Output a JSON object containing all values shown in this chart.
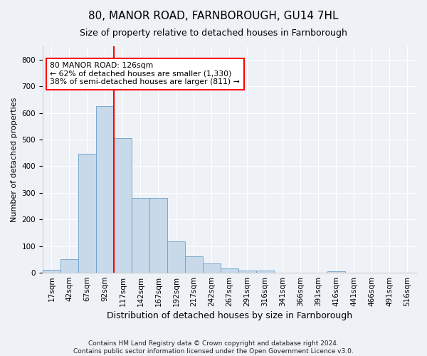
{
  "title": "80, MANOR ROAD, FARNBOROUGH, GU14 7HL",
  "subtitle": "Size of property relative to detached houses in Farnborough",
  "xlabel": "Distribution of detached houses by size in Farnborough",
  "ylabel": "Number of detached properties",
  "bar_labels": [
    "17sqm",
    "42sqm",
    "67sqm",
    "92sqm",
    "117sqm",
    "142sqm",
    "167sqm",
    "192sqm",
    "217sqm",
    "242sqm",
    "267sqm",
    "291sqm",
    "316sqm",
    "341sqm",
    "366sqm",
    "391sqm",
    "416sqm",
    "441sqm",
    "466sqm",
    "491sqm",
    "516sqm"
  ],
  "bar_values": [
    10,
    52,
    447,
    625,
    505,
    280,
    280,
    117,
    62,
    34,
    17,
    9,
    7,
    0,
    0,
    0,
    5,
    0,
    0,
    0,
    0
  ],
  "bar_color": "#c8d9ea",
  "bar_edge_color": "#6aa0c8",
  "vline_x_index": 3.5,
  "vline_color": "red",
  "annotation_text": "80 MANOR ROAD: 126sqm\n← 62% of detached houses are smaller (1,330)\n38% of semi-detached houses are larger (811) →",
  "annotation_box_facecolor": "white",
  "annotation_box_edgecolor": "red",
  "ylim": [
    0,
    850
  ],
  "yticks": [
    0,
    100,
    200,
    300,
    400,
    500,
    600,
    700,
    800
  ],
  "footer": "Contains HM Land Registry data © Crown copyright and database right 2024.\nContains public sector information licensed under the Open Government Licence v3.0.",
  "bg_color": "#eef2f7",
  "plot_bg_color": "#eef2f7",
  "grid_color": "#ffffff",
  "title_fontsize": 11,
  "subtitle_fontsize": 9,
  "xlabel_fontsize": 9,
  "ylabel_fontsize": 8,
  "tick_fontsize": 7.5,
  "footer_fontsize": 6.5
}
